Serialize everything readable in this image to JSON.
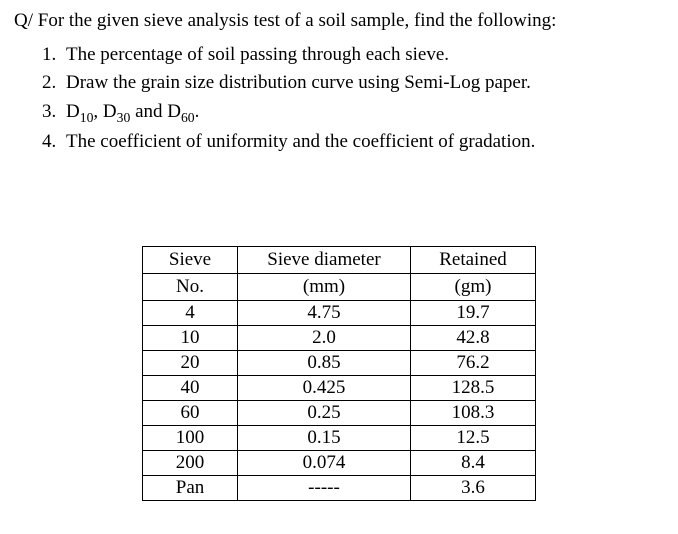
{
  "question": "Q/ For the given sieve analysis test of a soil sample, find the following:",
  "items": {
    "i1": {
      "num": "1.",
      "text": "The percentage of soil passing through each sieve."
    },
    "i2": {
      "num": "2.",
      "text": "Draw the grain size distribution curve using Semi-Log paper."
    },
    "i3": {
      "num": "3.",
      "prefix": "D",
      "s1": "10",
      "mid1": ", D",
      "s2": "30",
      "mid2": " and D",
      "s3": "60",
      "suffix": "."
    },
    "i4": {
      "num": "4.",
      "text": "The coefficient of uniformity and the coefficient of gradation."
    }
  },
  "table": {
    "header1": {
      "c1": "Sieve",
      "c2": "Sieve diameter",
      "c3": "Retained"
    },
    "header2": {
      "c1": "No.",
      "c2": "(mm)",
      "c3": "(gm)"
    },
    "rows": {
      "r0": {
        "c1": "4",
        "c2": "4.75",
        "c3": "19.7"
      },
      "r1": {
        "c1": "10",
        "c2": "2.0",
        "c3": "42.8"
      },
      "r2": {
        "c1": "20",
        "c2": "0.85",
        "c3": "76.2"
      },
      "r3": {
        "c1": "40",
        "c2": "0.425",
        "c3": "128.5"
      },
      "r4": {
        "c1": "60",
        "c2": "0.25",
        "c3": "108.3"
      },
      "r5": {
        "c1": "100",
        "c2": "0.15",
        "c3": "12.5"
      },
      "r6": {
        "c1": "200",
        "c2": "0.074",
        "c3": "8.4"
      },
      "r7": {
        "c1": "Pan",
        "c2": "-----",
        "c3": "3.6"
      }
    }
  }
}
